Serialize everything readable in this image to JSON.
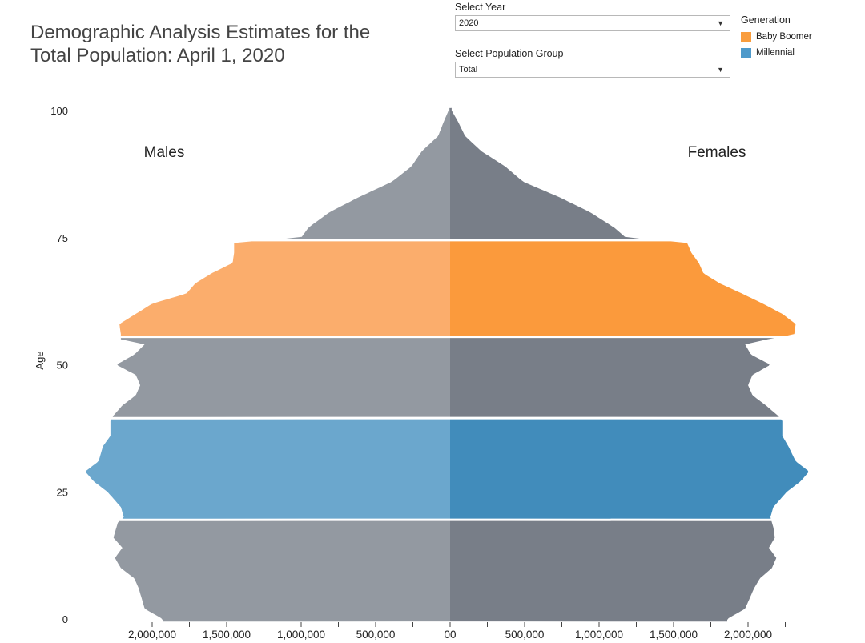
{
  "title_line1": "Demographic Analysis Estimates for the",
  "title_line2": "Total Population: April 1, 2020",
  "controls": {
    "year_label": "Select Year",
    "year_value": "2020",
    "group_label": "Select Population Group",
    "group_value": "Total"
  },
  "legend": {
    "title": "Generation",
    "items": [
      {
        "label": "Baby Boomer",
        "color": "#f99d3e"
      },
      {
        "label": "Millennial",
        "color": "#4e9acb"
      }
    ]
  },
  "chart_data": {
    "type": "area",
    "title": "Demographic Analysis Estimates for the Total Population: April 1, 2020",
    "ylabel": "Age",
    "side_labels": {
      "left": "Males",
      "right": "Females"
    },
    "y_ticks": [
      "0",
      "25",
      "50",
      "75",
      "100"
    ],
    "x_tick_labels": [
      "2,000,000",
      "1,500,000",
      "1,000,000",
      "500,000",
      "00",
      "500,000",
      "1,000,000",
      "1,500,000",
      "2,000,000"
    ],
    "x_tick_values": [
      -2000000,
      -1500000,
      -1000000,
      -500000,
      0,
      500000,
      1000000,
      1500000,
      2000000
    ],
    "xlim": [
      -2500000,
      2450000
    ],
    "ylim": [
      0,
      102
    ],
    "colors": {
      "male_other": "#9399a1",
      "female_other": "#787e88",
      "male_boomer": "#fbad6c",
      "female_boomer": "#fb9a3c",
      "male_millennial": "#6ba7cd",
      "female_millennial": "#418cbb"
    },
    "segments": [
      {
        "generation": "Other",
        "ages": [
          0,
          19
        ]
      },
      {
        "generation": "Millennial",
        "ages": [
          20,
          39
        ]
      },
      {
        "generation": "Other",
        "ages": [
          40,
          55
        ]
      },
      {
        "generation": "Baby Boomer",
        "ages": [
          56,
          74
        ]
      },
      {
        "generation": "Other",
        "ages": [
          75,
          100
        ]
      }
    ],
    "series": [
      {
        "name": "Males",
        "ages": [
          0,
          2,
          4,
          6,
          8,
          10,
          12,
          14,
          16,
          18,
          19,
          20,
          22,
          25,
          27,
          29,
          31,
          34,
          36,
          39,
          40,
          42,
          44,
          46,
          48,
          50,
          52,
          54,
          55,
          56,
          58,
          60,
          62,
          64,
          66,
          68,
          70,
          72,
          74,
          75,
          77,
          80,
          83,
          86,
          89,
          92,
          95,
          98,
          100
        ],
        "values": [
          1930000,
          2050000,
          2070000,
          2090000,
          2120000,
          2210000,
          2250000,
          2200000,
          2260000,
          2240000,
          2230000,
          2190000,
          2210000,
          2300000,
          2390000,
          2450000,
          2360000,
          2330000,
          2280000,
          2280000,
          2260000,
          2200000,
          2110000,
          2080000,
          2110000,
          2240000,
          2120000,
          2050000,
          2210000,
          2210000,
          2220000,
          2110000,
          2000000,
          1770000,
          1710000,
          1600000,
          1460000,
          1450000,
          1450000,
          1000000,
          950000,
          810000,
          610000,
          390000,
          260000,
          190000,
          80000,
          40000,
          10000
        ]
      },
      {
        "name": "Females",
        "ages": [
          0,
          2,
          4,
          6,
          8,
          10,
          12,
          14,
          16,
          18,
          19,
          20,
          22,
          25,
          27,
          29,
          31,
          34,
          36,
          39,
          40,
          42,
          44,
          46,
          48,
          50,
          52,
          54,
          55,
          56,
          58,
          60,
          62,
          64,
          66,
          68,
          70,
          72,
          74,
          75,
          77,
          80,
          83,
          86,
          89,
          92,
          95,
          98,
          100
        ],
        "values": [
          1860000,
          1980000,
          2010000,
          2040000,
          2080000,
          2160000,
          2190000,
          2140000,
          2180000,
          2170000,
          2160000,
          2150000,
          2170000,
          2260000,
          2350000,
          2410000,
          2320000,
          2270000,
          2230000,
          2230000,
          2200000,
          2120000,
          2030000,
          2000000,
          2030000,
          2150000,
          2020000,
          1980000,
          2130000,
          2310000,
          2320000,
          2230000,
          2100000,
          1960000,
          1810000,
          1700000,
          1670000,
          1620000,
          1590000,
          1180000,
          1100000,
          940000,
          730000,
          490000,
          370000,
          210000,
          100000,
          50000,
          10000
        ]
      }
    ]
  }
}
